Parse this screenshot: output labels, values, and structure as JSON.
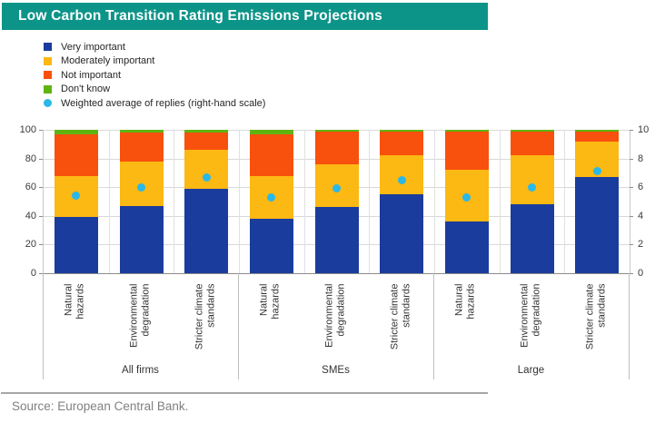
{
  "title": "Low Carbon Transition Rating Emissions Projections",
  "source_note": "Source: European Central Bank.",
  "colors": {
    "banner_teal": "#0d9489",
    "very_important": "#1a3c9c",
    "moderately_important": "#fcb813",
    "not_important": "#f8500d",
    "dont_know": "#5fb413",
    "weighted_average": "#29b8e8",
    "gridline": "#d9d9d9",
    "axis_line": "#8c8c8c"
  },
  "legend": [
    {
      "key": "very_important",
      "label": "Very important",
      "marker": "square"
    },
    {
      "key": "moderately_important",
      "label": "Moderately important",
      "marker": "square"
    },
    {
      "key": "not_important",
      "label": "Not important",
      "marker": "square"
    },
    {
      "key": "dont_know",
      "label": "Don't know",
      "marker": "square"
    },
    {
      "key": "weighted_average",
      "label": "Weighted average of  replies (right-hand scale)",
      "marker": "circle"
    }
  ],
  "chart_data": {
    "type": "bar",
    "subtype": "stacked-bar-with-scatter-overlay",
    "stack_order": [
      "very_important",
      "moderately_important",
      "not_important",
      "dont_know"
    ],
    "left_axis": {
      "min": 0,
      "max": 100,
      "ticks": [
        0,
        20,
        40,
        60,
        80,
        100
      ]
    },
    "right_axis": {
      "min": 0,
      "max": 10,
      "ticks": [
        0,
        2,
        4,
        6,
        8,
        10
      ]
    },
    "grid": true,
    "legend_position": "top-left",
    "groups": [
      {
        "label": "All firms",
        "bars": [
          {
            "category": "Natural hazards",
            "category_lines": [
              "Natural",
              "hazards"
            ],
            "very_important": 39,
            "moderately_important": 29,
            "not_important": 29,
            "dont_know": 3,
            "weighted_average": 5.4
          },
          {
            "category": "Environmental degradation",
            "category_lines": [
              "Environmental",
              "degradation"
            ],
            "very_important": 47,
            "moderately_important": 31,
            "not_important": 20,
            "dont_know": 2,
            "weighted_average": 6.0
          },
          {
            "category": "Stricter climate standards",
            "category_lines": [
              "Stricter climate",
              "standards"
            ],
            "very_important": 59,
            "moderately_important": 27,
            "not_important": 12,
            "dont_know": 2,
            "weighted_average": 6.7
          }
        ]
      },
      {
        "label": "SMEs",
        "bars": [
          {
            "category": "Natural hazards",
            "category_lines": [
              "Natural",
              "hazards"
            ],
            "very_important": 38,
            "moderately_important": 30,
            "not_important": 29,
            "dont_know": 3,
            "weighted_average": 5.3
          },
          {
            "category": "Environmental degradation",
            "category_lines": [
              "Environmental",
              "degradation"
            ],
            "very_important": 46,
            "moderately_important": 30,
            "not_important": 23,
            "dont_know": 1,
            "weighted_average": 5.9
          },
          {
            "category": "Stricter climate standards",
            "category_lines": [
              "Stricter climate",
              "standards"
            ],
            "very_important": 55,
            "moderately_important": 27,
            "not_important": 17,
            "dont_know": 1,
            "weighted_average": 6.5
          }
        ]
      },
      {
        "label": "Large",
        "bars": [
          {
            "category": "Natural hazards",
            "category_lines": [
              "Natural",
              "hazards"
            ],
            "very_important": 36,
            "moderately_important": 36,
            "not_important": 27,
            "dont_know": 1,
            "weighted_average": 5.3
          },
          {
            "category": "Environmental degradation",
            "category_lines": [
              "Environmental",
              "degradation"
            ],
            "very_important": 48,
            "moderately_important": 34,
            "not_important": 17,
            "dont_know": 1,
            "weighted_average": 6.0
          },
          {
            "category": "Stricter climate standards",
            "category_lines": [
              "Stricter climate",
              "standards"
            ],
            "very_important": 67,
            "moderately_important": 25,
            "not_important": 7,
            "dont_know": 1,
            "weighted_average": 7.1
          }
        ]
      }
    ]
  }
}
